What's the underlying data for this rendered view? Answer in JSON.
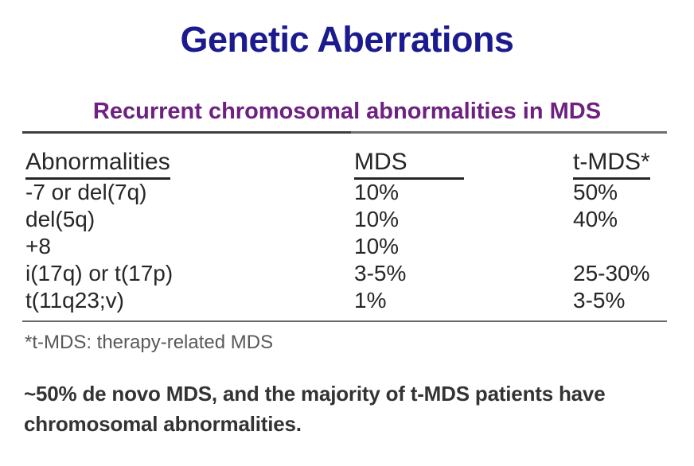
{
  "slide": {
    "title": "Genetic Aberrations",
    "subtitle": "Recurrent chromosomal abnormalities in MDS",
    "table": {
      "headers": [
        "Abnormalities",
        "MDS",
        "t-MDS*"
      ],
      "rows": [
        {
          "abnormality": "-7 or del(7q)",
          "mds": "10%",
          "tmds": "50%"
        },
        {
          "abnormality": "del(5q)",
          "mds": "10%",
          "tmds": "40%"
        },
        {
          "abnormality": "+8",
          "mds": "10%",
          "tmds": ""
        },
        {
          "abnormality": "i(17q) or t(17p)",
          "mds": "3-5%",
          "tmds": "25-30%"
        },
        {
          "abnormality": "t(11q23;v)",
          "mds": "1%",
          "tmds": "3-5%"
        }
      ]
    },
    "footnote": "*t-MDS: therapy-related MDS",
    "summary": {
      "line1": "~50% de novo MDS, and the majority of t-MDS patients have",
      "line2": "chromosomal abnormalities."
    },
    "colors": {
      "title": "#1b1b8f",
      "subtitle": "#6e2180",
      "table_text": "#262626",
      "footnote": "#595959",
      "summary": "#333333",
      "divider_dark": "#3e3e3e",
      "divider_light": "#6e6e6e"
    }
  }
}
